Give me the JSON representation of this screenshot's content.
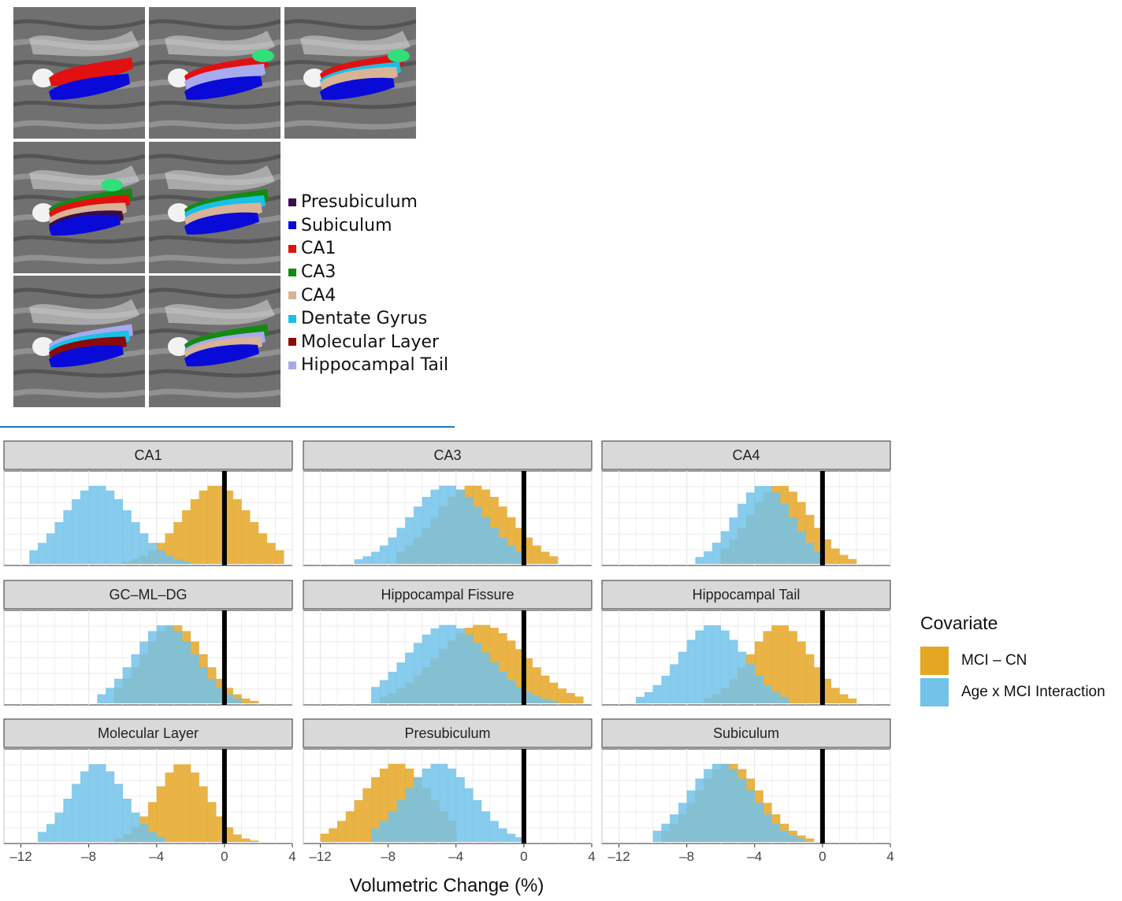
{
  "mri_legend": {
    "items": [
      {
        "label": "Presubiculum",
        "color": "#3d0a4a"
      },
      {
        "label": "Subiculum",
        "color": "#0a0ad8"
      },
      {
        "label": "CA1",
        "color": "#e11111"
      },
      {
        "label": "CA3",
        "color": "#138a13"
      },
      {
        "label": "CA4",
        "color": "#d8b396"
      },
      {
        "label": "Dentate Gyrus",
        "color": "#19c0e8"
      },
      {
        "label": "Molecular Layer",
        "color": "#8b0a0a"
      },
      {
        "label": "Hippocampal Tail",
        "color": "#a9a9ee"
      }
    ]
  },
  "colors": {
    "mci_cn": "#e5a624",
    "age_mci": "#72c2ea",
    "overlap": "#5fa6a8",
    "strip": "#d9d9d9"
  },
  "covariate_legend": {
    "title": "Covariate",
    "items": [
      {
        "label": "MCI – CN",
        "color": "#e5a624"
      },
      {
        "label": "Age x MCI Interaction",
        "color": "#72c2ea"
      }
    ]
  },
  "chart_data": {
    "type": "histogram",
    "xlabel": "Volumetric Change (%)",
    "xlim": [
      -13,
      4
    ],
    "xticks": [
      -12,
      -8,
      -4,
      0,
      4
    ],
    "xtick_labels": [
      "–12",
      "–8",
      "–4",
      "0",
      "4"
    ],
    "reference_line_x": 0,
    "bin_width": 0.5,
    "panels": [
      {
        "title": "CA1",
        "mci_cn": {
          "range": [
            -6,
            3.5
          ],
          "mean": -0.5,
          "sd": 2.0
        },
        "age_mci": {
          "range": [
            -11.5,
            -2
          ],
          "mean": -7.5,
          "sd": 2.0
        }
      },
      {
        "title": "CA3",
        "mci_cn": {
          "range": [
            -7.5,
            2
          ],
          "mean": -3,
          "sd": 2.2
        },
        "age_mci": {
          "range": [
            -10,
            0
          ],
          "mean": -4.5,
          "sd": 2.2
        }
      },
      {
        "title": "CA4",
        "mci_cn": {
          "range": [
            -6,
            2
          ],
          "mean": -2.5,
          "sd": 1.8
        },
        "age_mci": {
          "range": [
            -7.5,
            0
          ],
          "mean": -3.5,
          "sd": 1.7
        }
      },
      {
        "title": "GC–ML–DG",
        "mci_cn": {
          "range": [
            -6.5,
            2
          ],
          "mean": -3,
          "sd": 1.8
        },
        "age_mci": {
          "range": [
            -7.5,
            1
          ],
          "mean": -3.5,
          "sd": 1.8
        }
      },
      {
        "title": "Hippocampal Fissure",
        "mci_cn": {
          "range": [
            -8.5,
            3.5
          ],
          "mean": -2.5,
          "sd": 2.6
        },
        "age_mci": {
          "range": [
            -9,
            2
          ],
          "mean": -4.5,
          "sd": 2.4
        }
      },
      {
        "title": "Hippocampal Tail",
        "mci_cn": {
          "range": [
            -7,
            2
          ],
          "mean": -2.5,
          "sd": 1.8
        },
        "age_mci": {
          "range": [
            -11,
            -2
          ],
          "mean": -6.5,
          "sd": 1.9
        }
      },
      {
        "title": "Molecular Layer",
        "mci_cn": {
          "range": [
            -6.5,
            2
          ],
          "mean": -2.5,
          "sd": 1.5
        },
        "age_mci": {
          "range": [
            -11,
            -3.5
          ],
          "mean": -7.5,
          "sd": 1.6
        }
      },
      {
        "title": "Presubiculum",
        "mci_cn": {
          "range": [
            -12,
            -4
          ],
          "mean": -7.5,
          "sd": 2.0
        },
        "age_mci": {
          "range": [
            -9,
            0
          ],
          "mean": -5,
          "sd": 2.0
        }
      },
      {
        "title": "Subiculum",
        "mci_cn": {
          "range": [
            -9.5,
            -0.5
          ],
          "mean": -5.5,
          "sd": 1.9
        },
        "age_mci": {
          "range": [
            -10,
            -1
          ],
          "mean": -6,
          "sd": 1.9
        }
      }
    ]
  }
}
